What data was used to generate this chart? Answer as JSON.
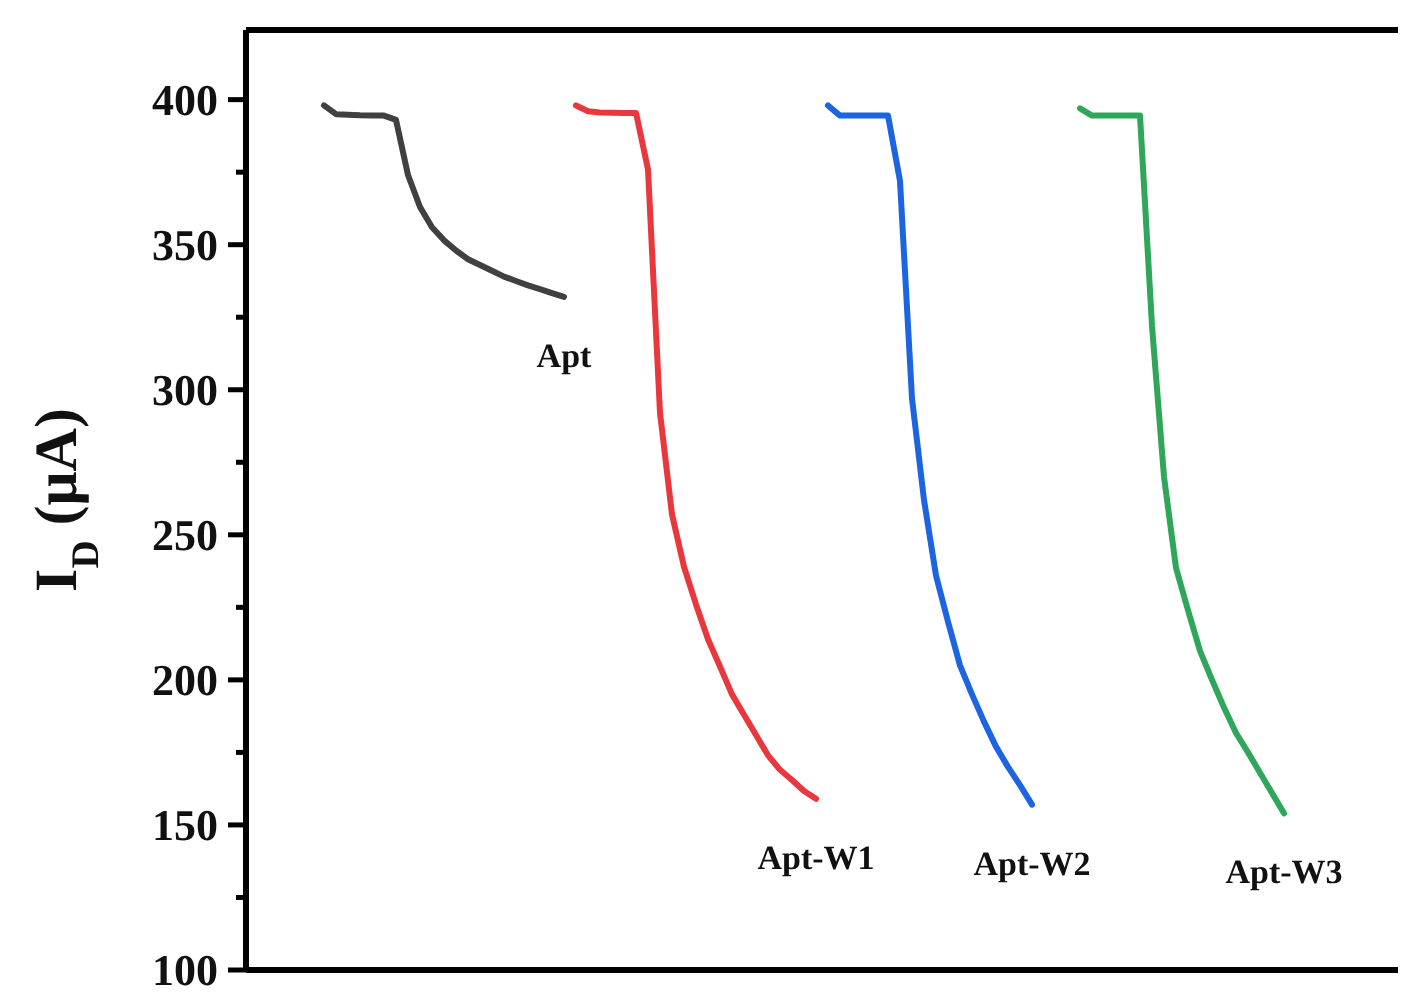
{
  "chart_data": {
    "type": "line",
    "ylabel": "I$_{D}$ (μA)",
    "ylim": [
      100,
      424
    ],
    "yticks": [
      100,
      {
        "value": 125,
        "label": null
      },
      150,
      {
        "value": 175,
        "label": null
      },
      200,
      {
        "value": 225,
        "label": null
      },
      250,
      {
        "value": 275,
        "label": null
      },
      300,
      {
        "value": 325,
        "label": null
      },
      350,
      {
        "value": 375,
        "label": null
      },
      400
    ],
    "grid": false,
    "line_style": "solid",
    "categories": [
      null,
      null,
      null,
      null,
      null,
      null,
      null,
      null,
      null,
      null,
      null,
      null,
      null,
      null,
      null,
      null,
      null,
      null,
      null,
      null,
      null,
      null,
      null,
      null,
      null,
      null,
      null,
      null,
      null,
      null,
      null,
      null,
      null,
      null,
      null,
      null,
      null,
      null,
      null,
      null,
      null,
      null,
      null,
      null,
      null,
      null,
      null,
      null,
      null,
      null,
      null,
      null,
      null,
      null,
      null,
      null,
      null,
      null,
      null,
      null,
      null,
      null,
      null,
      null,
      null,
      null,
      null,
      null,
      null,
      null,
      null,
      null,
      null,
      null,
      null,
      null,
      null,
      null,
      null,
      null,
      null,
      null,
      null,
      null,
      null,
      null,
      null,
      null,
      null,
      null,
      null,
      null,
      null,
      null,
      null,
      null
    ],
    "series": [
      {
        "name": "Apt",
        "color": "#404040",
        "values": [
          null,
          null,
          null,
          null,
          null,
          null,
          398,
          395,
          394.8,
          394.6,
          394.5,
          394.5,
          393,
          374,
          363,
          356,
          351.5,
          348,
          345,
          343,
          341,
          339,
          337.5,
          336,
          334.7,
          333.3,
          332,
          null,
          null,
          null,
          null,
          null,
          null,
          null,
          null,
          null,
          null,
          null,
          null,
          null,
          null,
          null,
          null,
          null,
          null,
          null,
          null,
          null,
          null,
          null,
          null,
          null,
          null,
          null,
          null,
          null,
          null,
          null,
          null,
          null,
          null,
          null,
          null,
          null,
          null,
          null,
          null,
          null,
          null,
          null,
          null,
          null,
          null,
          null,
          null,
          null,
          null,
          null,
          null,
          null,
          null,
          null,
          null,
          null,
          null,
          null,
          null,
          null,
          null,
          null,
          null,
          null,
          null,
          null,
          null,
          null
        ]
      },
      {
        "name": "Apt-W1",
        "color": "#e8383d",
        "values": [
          null,
          null,
          null,
          null,
          null,
          null,
          null,
          null,
          null,
          null,
          null,
          null,
          null,
          null,
          null,
          null,
          null,
          null,
          null,
          null,
          null,
          null,
          null,
          null,
          null,
          null,
          null,
          398,
          396,
          395.6,
          395.5,
          395.4,
          395.4,
          376,
          292,
          257,
          239,
          226,
          214,
          204.6,
          195,
          188,
          181,
          174,
          169,
          165.5,
          161.7,
          159,
          null,
          null,
          null,
          null,
          null,
          null,
          null,
          null,
          null,
          null,
          null,
          null,
          null,
          null,
          null,
          null,
          null,
          null,
          null,
          null,
          null,
          null,
          null,
          null,
          null,
          null,
          null,
          null,
          null,
          null,
          null,
          null,
          null,
          null,
          null,
          null,
          null,
          null,
          null,
          null,
          null,
          null,
          null,
          null,
          null,
          null,
          null,
          null
        ]
      },
      {
        "name": "Apt-W2",
        "color": "#1c64e0",
        "values": [
          null,
          null,
          null,
          null,
          null,
          null,
          null,
          null,
          null,
          null,
          null,
          null,
          null,
          null,
          null,
          null,
          null,
          null,
          null,
          null,
          null,
          null,
          null,
          null,
          null,
          null,
          null,
          null,
          null,
          null,
          null,
          null,
          null,
          null,
          null,
          null,
          null,
          null,
          null,
          null,
          null,
          null,
          null,
          null,
          null,
          null,
          null,
          null,
          398,
          394.5,
          394.5,
          394.5,
          394.5,
          394.5,
          372,
          297,
          262,
          236,
          220,
          205,
          195,
          185.6,
          177,
          170,
          163.7,
          157,
          null,
          null,
          null,
          null,
          null,
          null,
          null,
          null,
          null,
          null,
          null,
          null,
          null,
          null,
          null,
          null,
          null,
          null,
          null,
          null,
          null,
          null,
          null,
          null,
          null,
          null,
          null,
          null,
          null,
          null
        ]
      },
      {
        "name": "Apt-W3",
        "color": "#2fa65a",
        "values": [
          null,
          null,
          null,
          null,
          null,
          null,
          null,
          null,
          null,
          null,
          null,
          null,
          null,
          null,
          null,
          null,
          null,
          null,
          null,
          null,
          null,
          null,
          null,
          null,
          null,
          null,
          null,
          null,
          null,
          null,
          null,
          null,
          null,
          null,
          null,
          null,
          null,
          null,
          null,
          null,
          null,
          null,
          null,
          null,
          null,
          null,
          null,
          null,
          null,
          null,
          null,
          null,
          null,
          null,
          null,
          null,
          null,
          null,
          null,
          null,
          null,
          null,
          null,
          null,
          null,
          null,
          null,
          null,
          null,
          397,
          394.5,
          394.5,
          394.5,
          394.5,
          394.5,
          322,
          270,
          238.6,
          224,
          210,
          200,
          190.5,
          181.7,
          175,
          168,
          161,
          154,
          null,
          null,
          null,
          null,
          null,
          null,
          null,
          null,
          null
        ]
      }
    ]
  }
}
